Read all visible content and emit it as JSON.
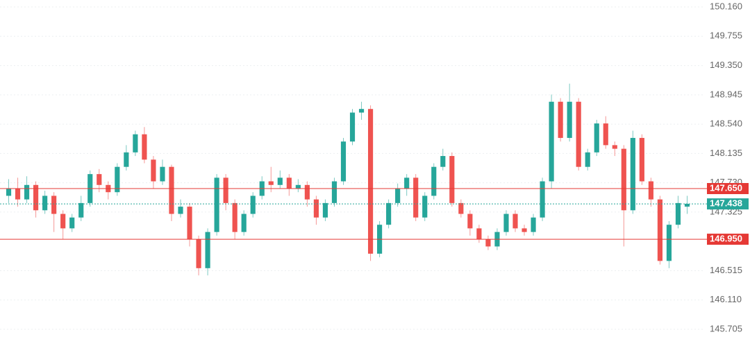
{
  "chart_data": {
    "type": "candlestick",
    "up_color": "#26a69a",
    "down_color": "#ef5350",
    "open": [
      147.55,
      147.65,
      147.5,
      147.7,
      147.35,
      147.55,
      147.3,
      147.1,
      147.25,
      147.45,
      147.85,
      147.7,
      147.6,
      147.95,
      148.15,
      148.4,
      148.05,
      147.75,
      147.95,
      147.3,
      147.4,
      146.95,
      146.55,
      147.05,
      147.8,
      147.45,
      147.05,
      147.3,
      147.55,
      147.75,
      147.7,
      147.8,
      147.65,
      147.7,
      147.5,
      147.25,
      147.45,
      147.75,
      148.3,
      148.7,
      148.75,
      146.75,
      147.15,
      147.45,
      147.65,
      147.8,
      147.25,
      147.55,
      147.95,
      148.1,
      147.45,
      147.3,
      147.1,
      146.95,
      146.85,
      147.05,
      147.3,
      147.1,
      147.05,
      147.25,
      147.75,
      148.85,
      148.35,
      148.85,
      147.95,
      148.15,
      148.55,
      148.25,
      148.2,
      147.35,
      148.35,
      147.75,
      147.5,
      146.65,
      147.15,
      147.4
    ],
    "high": [
      147.78,
      147.8,
      147.82,
      147.75,
      147.62,
      147.6,
      147.35,
      147.3,
      147.55,
      147.9,
      147.92,
      147.75,
      148.0,
      148.25,
      148.45,
      148.5,
      148.1,
      148.05,
      147.98,
      147.5,
      147.45,
      147.0,
      147.1,
      147.85,
      147.85,
      147.5,
      147.35,
      147.6,
      147.82,
      147.95,
      147.9,
      147.85,
      147.78,
      147.75,
      147.55,
      147.5,
      147.8,
      148.35,
      148.75,
      148.85,
      148.8,
      147.2,
      147.5,
      147.72,
      147.85,
      147.85,
      147.6,
      148.0,
      148.2,
      148.15,
      147.5,
      147.35,
      147.15,
      147.0,
      147.1,
      147.35,
      147.35,
      147.15,
      147.3,
      147.8,
      148.95,
      148.9,
      149.1,
      148.9,
      148.2,
      148.6,
      148.65,
      148.3,
      148.25,
      148.45,
      148.4,
      147.8,
      147.55,
      147.2,
      147.55,
      147.55
    ],
    "low": [
      147.45,
      147.4,
      147.45,
      147.25,
      147.3,
      147.05,
      146.95,
      147.05,
      147.2,
      147.4,
      147.6,
      147.5,
      147.55,
      147.9,
      148.1,
      148.0,
      147.65,
      147.7,
      147.2,
      147.25,
      146.85,
      146.45,
      146.45,
      147.0,
      147.35,
      146.95,
      147.0,
      147.25,
      147.5,
      147.6,
      147.65,
      147.55,
      147.6,
      147.4,
      147.15,
      147.2,
      147.4,
      147.7,
      148.25,
      148.6,
      146.65,
      146.7,
      147.1,
      147.4,
      147.55,
      147.2,
      147.2,
      147.5,
      147.9,
      147.4,
      147.25,
      147.0,
      146.9,
      146.8,
      146.8,
      147.0,
      147.05,
      147.0,
      147.0,
      147.2,
      147.65,
      148.3,
      148.3,
      147.9,
      147.9,
      148.1,
      148.2,
      148.1,
      146.85,
      147.3,
      147.7,
      147.4,
      146.6,
      146.55,
      147.1,
      147.3
    ],
    "close": [
      147.65,
      147.5,
      147.7,
      147.35,
      147.55,
      147.3,
      147.1,
      147.25,
      147.45,
      147.85,
      147.7,
      147.6,
      147.95,
      148.15,
      148.4,
      148.05,
      147.75,
      147.95,
      147.3,
      147.4,
      146.95,
      146.55,
      147.05,
      147.8,
      147.45,
      147.05,
      147.3,
      147.55,
      147.75,
      147.7,
      147.8,
      147.65,
      147.7,
      147.5,
      147.25,
      147.45,
      147.75,
      148.3,
      148.7,
      148.75,
      146.75,
      147.15,
      147.45,
      147.65,
      147.8,
      147.25,
      147.55,
      147.95,
      148.1,
      147.45,
      147.3,
      147.1,
      146.95,
      146.85,
      147.05,
      147.3,
      147.1,
      147.05,
      147.25,
      147.75,
      148.85,
      148.35,
      148.85,
      147.95,
      148.15,
      148.55,
      148.25,
      148.2,
      147.35,
      148.35,
      147.75,
      147.5,
      146.65,
      147.15,
      147.45,
      147.44
    ],
    "ylim": [
      145.571,
      150.256
    ],
    "yticks": [
      {
        "value": 150.16,
        "label": "150.160"
      },
      149.755,
      {
        "value": 149.35,
        "label": "149.350"
      },
      148.945,
      {
        "value": 148.54,
        "label": "148.540"
      },
      148.135,
      {
        "value": 147.73,
        "label": "147.730"
      },
      147.325,
      146.515,
      {
        "value": 146.11,
        "label": "146.110"
      },
      145.705
    ],
    "grid": true,
    "levels": [
      {
        "value": 147.65,
        "label": "147.650",
        "color": "#e53935"
      },
      {
        "value": 146.95,
        "label": "146.950",
        "color": "#e53935"
      }
    ],
    "last_price": {
      "value": 147.438,
      "label": "147.438",
      "color": "#26a69a"
    }
  }
}
